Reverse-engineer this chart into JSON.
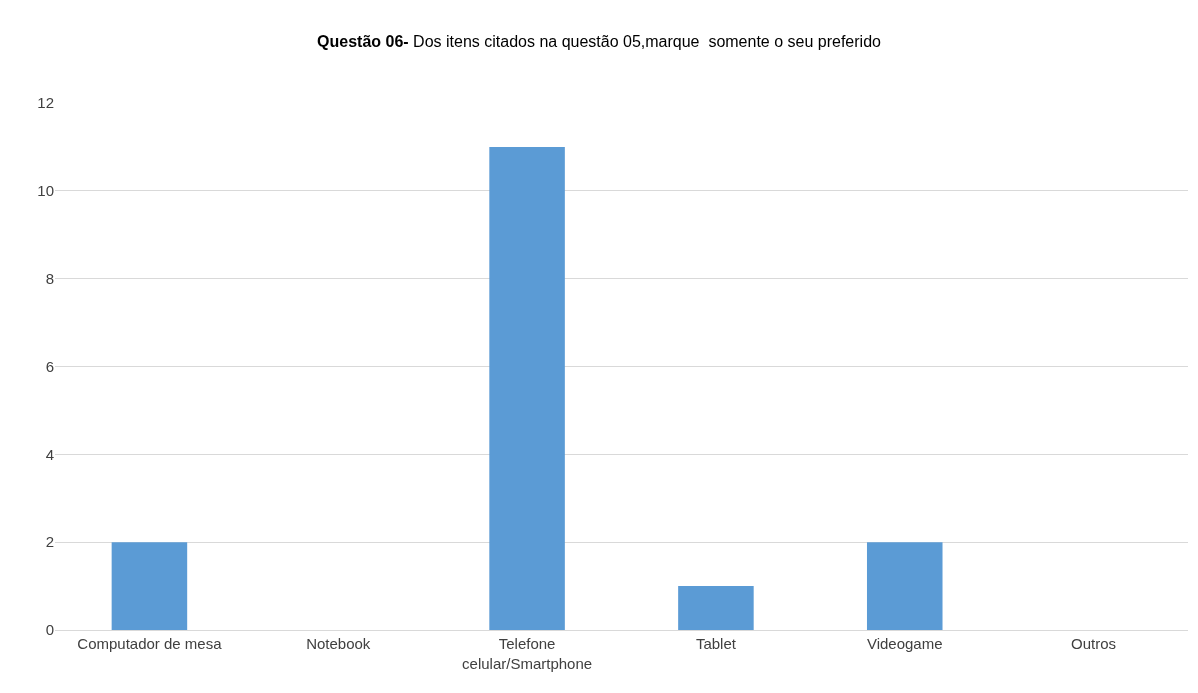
{
  "chart_data": {
    "type": "bar",
    "title": "Questão 06- Dos itens citados na questão 05,marque  somente o seu preferido",
    "categories": [
      "Computador de mesa",
      "Notebook",
      "Telefone celular/Smartphone",
      "Tablet",
      "Videogame",
      "Outros"
    ],
    "values": [
      2,
      0,
      11,
      1,
      2,
      0
    ],
    "color": "#5b9bd5",
    "ylim": [
      0,
      12
    ],
    "yticks": [
      0,
      2,
      4,
      6,
      8,
      10,
      12
    ],
    "grid": "y"
  }
}
